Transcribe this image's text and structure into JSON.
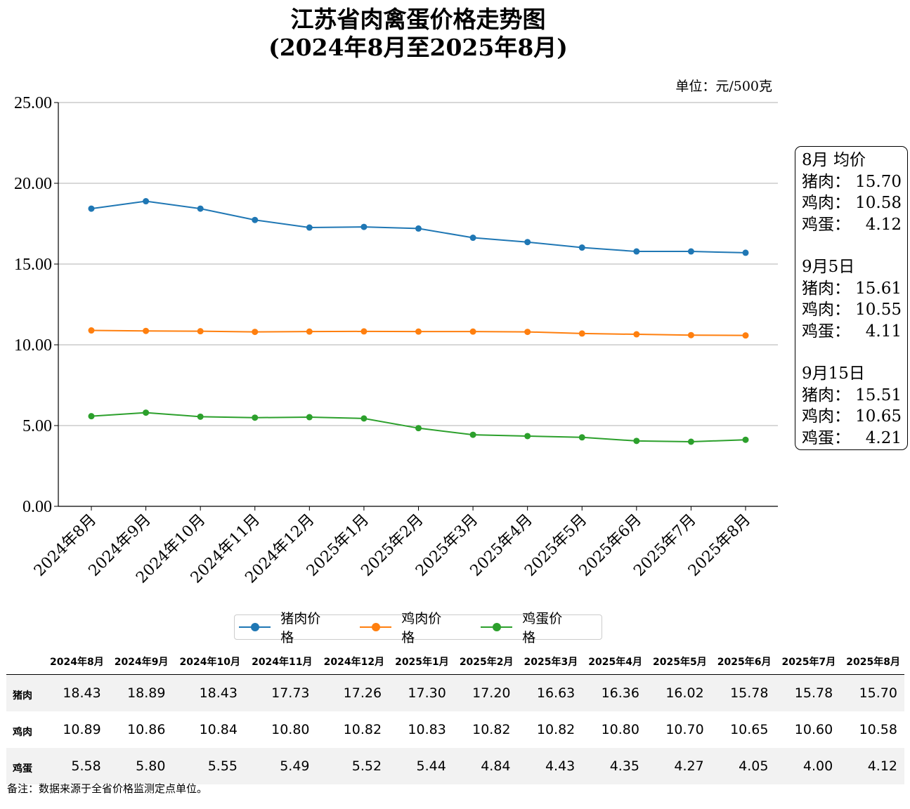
{
  "title_line1": "江苏省肉禽蛋价格走势图",
  "title_line2": "(2024年8月至2025年8月)",
  "unit_label": "单位：元/500克",
  "chart_data": {
    "type": "line",
    "categories": [
      "2024年8月",
      "2024年9月",
      "2024年10月",
      "2024年11月",
      "2024年12月",
      "2025年1月",
      "2025年2月",
      "2025年3月",
      "2025年4月",
      "2025年5月",
      "2025年6月",
      "2025年7月",
      "2025年8月"
    ],
    "series": [
      {
        "name": "猪肉价格",
        "color": "#1f77b4",
        "values": [
          18.43,
          18.89,
          18.43,
          17.73,
          17.26,
          17.3,
          17.2,
          16.63,
          16.36,
          16.02,
          15.78,
          15.78,
          15.7
        ]
      },
      {
        "name": "鸡肉价格",
        "color": "#ff7f0e",
        "values": [
          10.89,
          10.86,
          10.84,
          10.8,
          10.82,
          10.83,
          10.82,
          10.82,
          10.8,
          10.7,
          10.65,
          10.6,
          10.58
        ]
      },
      {
        "name": "鸡蛋价格",
        "color": "#2ca02c",
        "values": [
          5.58,
          5.8,
          5.55,
          5.49,
          5.52,
          5.44,
          4.84,
          4.43,
          4.35,
          4.27,
          4.05,
          4.0,
          4.12
        ]
      }
    ],
    "ylim": [
      0,
      25
    ],
    "yticks": [
      "0.00",
      "5.00",
      "10.00",
      "15.00",
      "20.00",
      "25.00"
    ],
    "grid": "horizontal",
    "legend_position": "bottom"
  },
  "info_box": {
    "sections": [
      {
        "heading": "8月 均价",
        "rows": [
          {
            "label": "猪肉：",
            "value": "15.70"
          },
          {
            "label": "鸡肉：",
            "value": "10.58"
          },
          {
            "label": "鸡蛋：",
            "value": "4.12"
          }
        ]
      },
      {
        "heading": "9月5日",
        "rows": [
          {
            "label": "猪肉：",
            "value": "15.61"
          },
          {
            "label": "鸡肉：",
            "value": "10.55"
          },
          {
            "label": "鸡蛋：",
            "value": "4.11"
          }
        ]
      },
      {
        "heading": "9月15日",
        "rows": [
          {
            "label": "猪肉：",
            "value": "15.51"
          },
          {
            "label": "鸡肉：",
            "value": "10.65"
          },
          {
            "label": "鸡蛋：",
            "value": "4.21"
          }
        ]
      }
    ]
  },
  "table": {
    "rows": [
      {
        "label": "猪肉",
        "values": [
          "18.43",
          "18.89",
          "18.43",
          "17.73",
          "17.26",
          "17.30",
          "17.20",
          "16.63",
          "16.36",
          "16.02",
          "15.78",
          "15.78",
          "15.70"
        ]
      },
      {
        "label": "鸡肉",
        "values": [
          "10.89",
          "10.86",
          "10.84",
          "10.80",
          "10.82",
          "10.83",
          "10.82",
          "10.82",
          "10.80",
          "10.70",
          "10.65",
          "10.60",
          "10.58"
        ]
      },
      {
        "label": "鸡蛋",
        "values": [
          "5.58",
          "5.80",
          "5.55",
          "5.49",
          "5.52",
          "5.44",
          "4.84",
          "4.43",
          "4.35",
          "4.27",
          "4.05",
          "4.00",
          "4.12"
        ]
      }
    ]
  },
  "note": "备注：数据来源于全省价格监测定点单位。"
}
